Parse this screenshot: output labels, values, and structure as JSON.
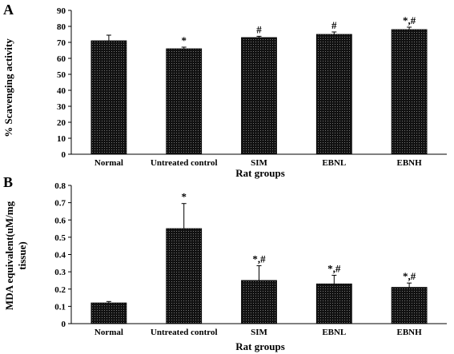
{
  "chart_data": [
    {
      "type": "bar",
      "panel_label": "A",
      "categories": [
        "Normal",
        "Untreated control",
        "SIM",
        "EBNL",
        "EBNH"
      ],
      "values": [
        71,
        66,
        73,
        75,
        78
      ],
      "errors": [
        3.5,
        1,
        0.8,
        1.5,
        1.5
      ],
      "significance": [
        "",
        "*",
        "#",
        "#",
        "*,#"
      ],
      "ylabel": "% Scavenging activity",
      "xlabel": "Rat groups",
      "ylim": [
        0,
        90
      ],
      "yticks": [
        "0",
        "10",
        "20",
        "30",
        "40",
        "50",
        "60",
        "70",
        "80",
        "90"
      ],
      "grid": false,
      "legend": "none",
      "bar_color": "#111111"
    },
    {
      "type": "bar",
      "panel_label": "B",
      "categories": [
        "Normal",
        "Untreated control",
        "SIM",
        "EBNL",
        "EBNH"
      ],
      "values": [
        0.12,
        0.55,
        0.25,
        0.23,
        0.21
      ],
      "errors": [
        0.008,
        0.145,
        0.085,
        0.05,
        0.025
      ],
      "significance": [
        "",
        "*",
        "*,#",
        "*,#",
        "*,#"
      ],
      "ylabel": "MDA equivalent(uM/mg tissue)",
      "ylabel_lines": [
        "MDA equivalent(uM/mg",
        "tissue)"
      ],
      "xlabel": "Rat groups",
      "ylim": [
        0,
        0.8
      ],
      "yticks": [
        "0",
        "0.1",
        "0.2",
        "0.3",
        "0.4",
        "0.5",
        "0.6",
        "0.7",
        "0.8"
      ],
      "grid": false,
      "legend": "none",
      "bar_color": "#111111"
    }
  ]
}
